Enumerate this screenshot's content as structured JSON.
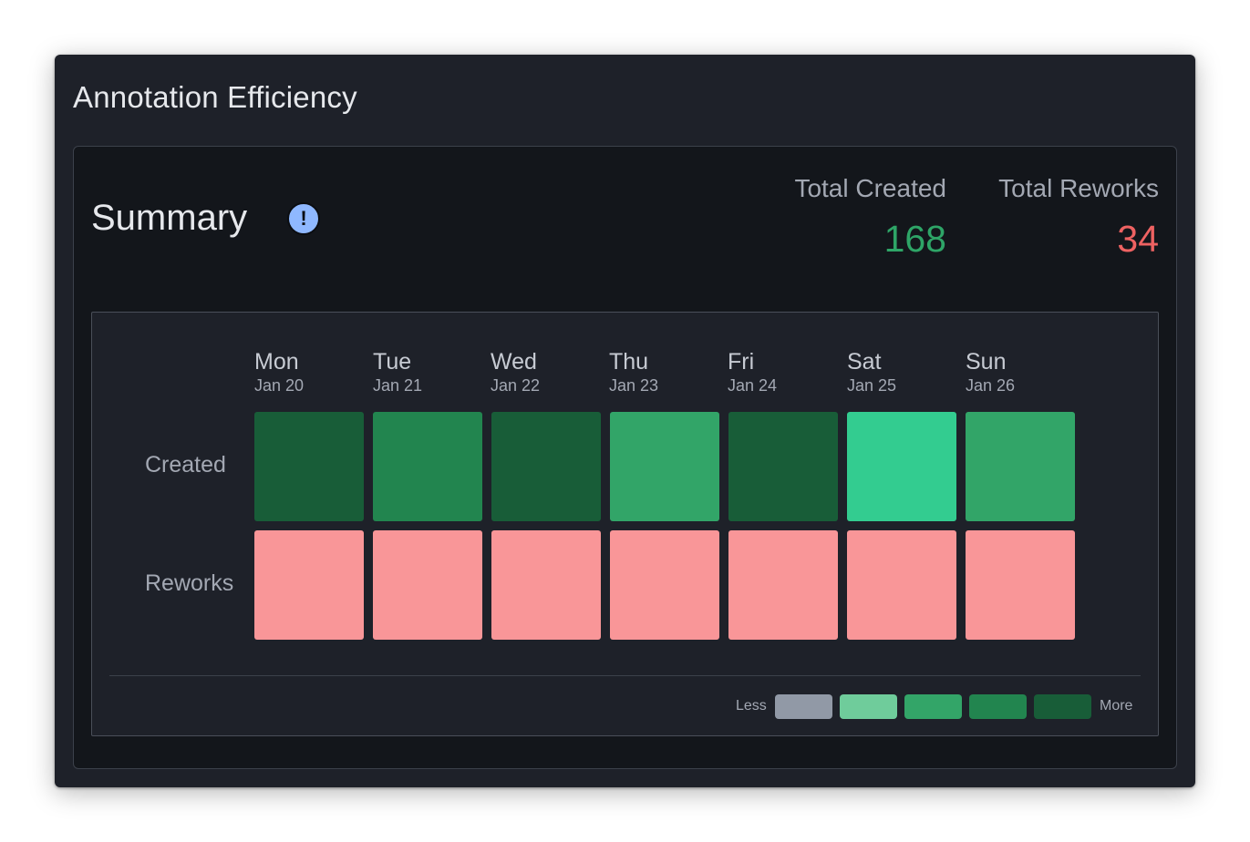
{
  "card": {
    "title": "Annotation Efficiency"
  },
  "summary": {
    "title": "Summary",
    "info_icon": "!",
    "total_created": {
      "label": "Total Created",
      "value": "168",
      "color": "#2ea567"
    },
    "total_reworks": {
      "label": "Total Reworks",
      "value": "34",
      "color": "#ee6262"
    }
  },
  "heatmap": {
    "days": [
      {
        "name": "Mon",
        "date": "Jan 20"
      },
      {
        "name": "Tue",
        "date": "Jan 21"
      },
      {
        "name": "Wed",
        "date": "Jan 22"
      },
      {
        "name": "Thu",
        "date": "Jan 23"
      },
      {
        "name": "Fri",
        "date": "Jan 24"
      },
      {
        "name": "Sat",
        "date": "Jan 25"
      },
      {
        "name": "Sun",
        "date": "Jan 26"
      }
    ],
    "rows": [
      {
        "label": "Created",
        "colors": [
          "#185d38",
          "#22854f",
          "#185d38",
          "#32a568",
          "#185d38",
          "#33cc90",
          "#32a568"
        ]
      },
      {
        "label": "Reworks",
        "colors": [
          "#f99698",
          "#f99698",
          "#f99698",
          "#f99698",
          "#f99698",
          "#f99698",
          "#f99698"
        ]
      }
    ],
    "legend": {
      "less_label": "Less",
      "more_label": "More",
      "swatches": [
        "#9199a6",
        "#6fcc9b",
        "#33a568",
        "#22854f",
        "#185d38"
      ]
    }
  }
}
